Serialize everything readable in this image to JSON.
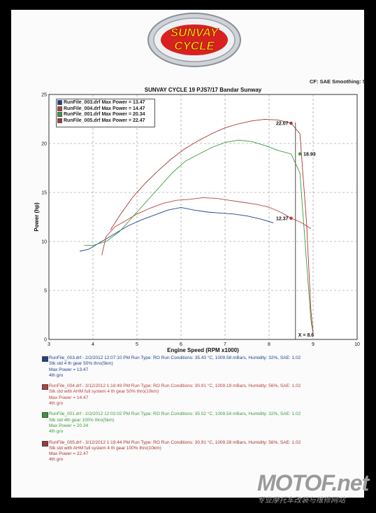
{
  "logo": {
    "line1": "SUNVAY",
    "line2": "CYCLE"
  },
  "header": {
    "cf_text": "CF: SAE  Smoothing: 5"
  },
  "chart_data": {
    "type": "line",
    "title": "SUNVAY CYCLE 19 PJS7/17 Bandar Sunway",
    "xlabel": "Engine Speed (RPM x1000)",
    "ylabel": "Power (hp)",
    "xlim": [
      3,
      10
    ],
    "ylim": [
      0,
      25
    ],
    "xticks": [
      "3",
      "4",
      "5",
      "6",
      "7",
      "8",
      "9",
      "10"
    ],
    "yticks": [
      "0",
      "5",
      "10",
      "15",
      "20",
      "25"
    ],
    "grid": true,
    "legend_position": "top-left",
    "series": [
      {
        "name": "RunFile_003.drf Max Power = 13.47",
        "color": "#1f3f8f",
        "x": [
          3.7,
          3.9,
          4.2,
          4.5,
          4.8,
          5.1,
          5.4,
          5.7,
          6.0,
          6.3,
          6.6,
          6.9,
          7.2,
          7.5,
          7.8,
          8.1
        ],
        "y": [
          9.0,
          9.2,
          10.0,
          10.8,
          11.6,
          12.2,
          12.7,
          13.2,
          13.47,
          13.2,
          13.0,
          12.9,
          12.8,
          12.6,
          12.3,
          11.9
        ]
      },
      {
        "name": "RunFile_004.drf Max Power = 14.47",
        "color": "#b8403a",
        "x": [
          4.2,
          4.3,
          4.5,
          4.7,
          5.0,
          5.3,
          5.6,
          5.9,
          6.2,
          6.5,
          6.8,
          7.1,
          7.4,
          7.7,
          8.0,
          8.3,
          8.5,
          8.7,
          8.85,
          8.95
        ],
        "y": [
          8.6,
          10.5,
          11.5,
          12.0,
          12.8,
          13.4,
          13.9,
          14.2,
          14.3,
          14.47,
          14.4,
          14.2,
          14.0,
          13.8,
          13.5,
          12.9,
          12.37,
          12.0,
          11.6,
          11.3
        ]
      },
      {
        "name": "RunFile_001.drf Max Power = 20.34",
        "color": "#3a9a3a",
        "x": [
          3.8,
          4.0,
          4.3,
          4.6,
          4.9,
          5.2,
          5.5,
          5.8,
          6.1,
          6.4,
          6.7,
          7.0,
          7.3,
          7.6,
          7.9,
          8.2,
          8.5,
          8.7,
          8.85,
          8.95,
          9.0
        ],
        "y": [
          9.6,
          9.6,
          10.0,
          11.0,
          12.5,
          14.0,
          15.5,
          17.0,
          18.2,
          18.9,
          19.6,
          20.1,
          20.34,
          20.2,
          19.8,
          19.3,
          18.93,
          17.0,
          8.0,
          2.0,
          0.6
        ]
      },
      {
        "name": "RunFile_005.drf Max Power = 22.47",
        "color": "#a83434",
        "x": [
          4.4,
          4.6,
          4.9,
          5.2,
          5.5,
          5.8,
          6.1,
          6.4,
          6.7,
          7.0,
          7.3,
          7.6,
          7.9,
          8.2,
          8.5,
          8.7,
          8.85,
          8.95,
          9.0
        ],
        "y": [
          11.2,
          12.6,
          14.5,
          16.0,
          17.3,
          18.5,
          19.5,
          20.3,
          21.0,
          21.6,
          22.0,
          22.3,
          22.47,
          22.4,
          22.07,
          21.0,
          12.0,
          3.0,
          0.6
        ]
      }
    ],
    "annotations": [
      {
        "text": "22.07",
        "x": 8.5,
        "y": 22.07,
        "color": "#a83434"
      },
      {
        "text": "18.93",
        "x": 8.7,
        "y": 18.93,
        "color": "#3a9a3a"
      },
      {
        "text": "12.37",
        "x": 8.5,
        "y": 12.37,
        "color": "#b8403a"
      },
      {
        "text": "X = 8.6",
        "x": 8.6,
        "y": 0.6,
        "color": "#111"
      }
    ],
    "cursor_x": 8.6
  },
  "runs": [
    {
      "color": "#1f3f8f",
      "head": "RunFile_003.drf - 2/2/2012 12:07:10 PM  Run Type: RO  Run Conditions: 35.43 °C, 1009.58 mBars,  Humidity:  32%, SAE: 1.02",
      "lines": [
        "Stk std 4 th gear 50% thro(5km)",
        "Max Power = 13.47",
        "4th gro"
      ]
    },
    {
      "color": "#b8403a",
      "head": "RunFile_004.drf - 3/12/2012 1:18:49 PM  Run Type: RO  Run Conditions: 30.91 °C, 1009.19 mBars,  Humidity:  56%, SAE: 1.02",
      "lines": [
        "Stk std  with AHM full system 4 th gear 50% thro(10km)",
        "Max Power = 14.47",
        "4th gro"
      ]
    },
    {
      "color": "#3a9a3a",
      "head": "RunFile_001.drf - 2/2/2012 12:02:02 PM  Run Type: RO  Run Conditions: 35.02 °C, 1009.54 mBars,  Humidity:  32%, SAE: 1.02",
      "lines": [
        "Stk std 4th gear 100% thro(5km)",
        "Max Power = 20.34",
        "4th gro"
      ]
    },
    {
      "color": "#a83434",
      "head": "RunFile_005.drf - 3/12/2012 1:19:44 PM  Run Type: RO  Run Conditions: 30.91 °C, 1009.28 mBars,  Humidity:  56%, SAE: 1.02",
      "lines": [
        "Stk std  with AHM full system 4 th gear 100% thro(10km)",
        "Max Power = 22.47",
        "4th gro"
      ]
    }
  ],
  "watermark": {
    "main": "MOTOF.net",
    "sub": "专业摩托车改装与维修网站"
  }
}
